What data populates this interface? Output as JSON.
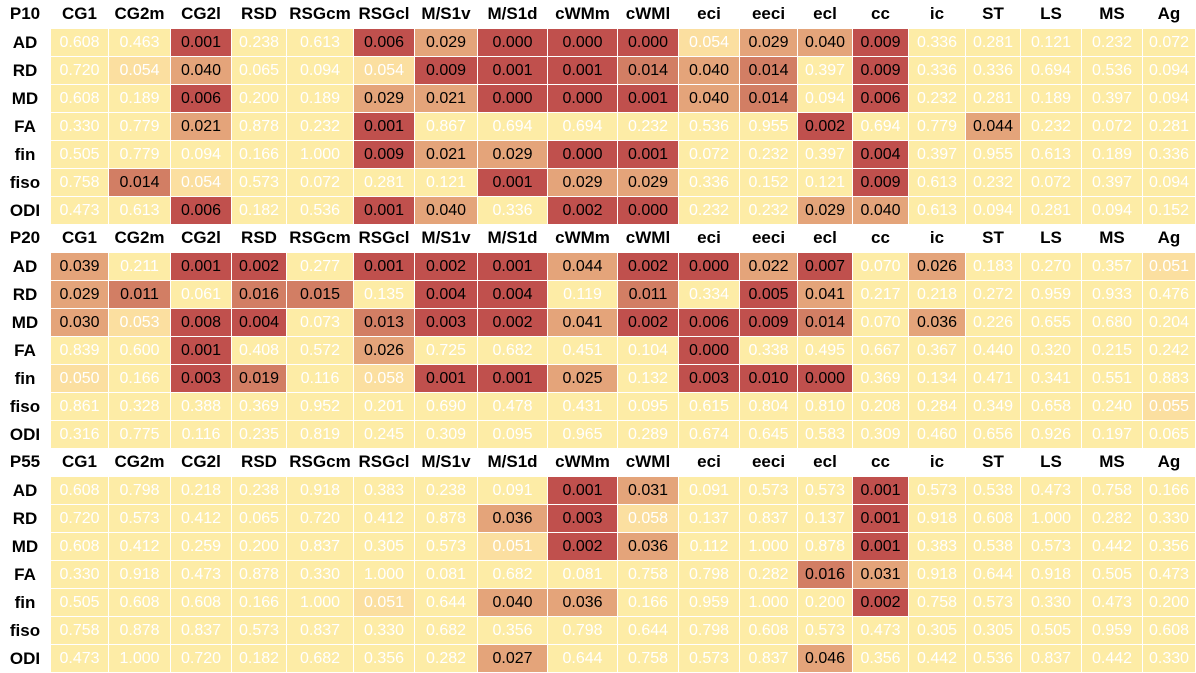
{
  "columns": [
    "CG1",
    "CG2m",
    "CG2l",
    "RSD",
    "RSGcm",
    "RSGcl",
    "M/S1v",
    "M/S1d",
    "cWMm",
    "cWMl",
    "eci",
    "eeci",
    "ecl",
    "cc",
    "ic",
    "ST",
    "LS",
    "MS",
    "Ag"
  ],
  "row_labels": [
    "AD",
    "RD",
    "MD",
    "FA",
    "fin",
    "fiso",
    "ODI"
  ],
  "palette": {
    "low": "#fdeca6",
    "mid": "#e4a47a",
    "high": "#c0504d"
  },
  "panels": [
    {
      "title": "P10",
      "rows": [
        [
          "0.608",
          "0.463",
          "0.001",
          "0.238",
          "0.613",
          "0.006",
          "0.029",
          "0.000",
          "0.000",
          "0.000",
          "0.054",
          "0.029",
          "0.040",
          "0.009",
          "0.336",
          "0.281",
          "0.121",
          "0.232",
          "0.072"
        ],
        [
          "0.720",
          "0.054",
          "0.040",
          "0.065",
          "0.094",
          "0.054",
          "0.009",
          "0.001",
          "0.001",
          "0.014",
          "0.040",
          "0.014",
          "0.397",
          "0.009",
          "0.336",
          "0.336",
          "0.694",
          "0.536",
          "0.094"
        ],
        [
          "0.608",
          "0.189",
          "0.006",
          "0.200",
          "0.189",
          "0.029",
          "0.021",
          "0.000",
          "0.000",
          "0.001",
          "0.040",
          "0.014",
          "0.094",
          "0.006",
          "0.232",
          "0.281",
          "0.189",
          "0.397",
          "0.094"
        ],
        [
          "0.330",
          "0.779",
          "0.021",
          "0.878",
          "0.232",
          "0.001",
          "0.867",
          "0.694",
          "0.694",
          "0.232",
          "0.536",
          "0.955",
          "0.002",
          "0.694",
          "0.779",
          "0.044",
          "0.232",
          "0.072",
          "0.281"
        ],
        [
          "0.505",
          "0.779",
          "0.094",
          "0.166",
          "1.000",
          "0.009",
          "0.021",
          "0.029",
          "0.000",
          "0.001",
          "0.072",
          "0.232",
          "0.397",
          "0.004",
          "0.397",
          "0.955",
          "0.613",
          "0.189",
          "0.336"
        ],
        [
          "0.758",
          "0.014",
          "0.054",
          "0.573",
          "0.072",
          "0.281",
          "0.121",
          "0.001",
          "0.029",
          "0.029",
          "0.336",
          "0.152",
          "0.121",
          "0.009",
          "0.613",
          "0.232",
          "0.072",
          "0.397",
          "0.094"
        ],
        [
          "0.473",
          "0.613",
          "0.006",
          "0.182",
          "0.536",
          "0.001",
          "0.040",
          "0.336",
          "0.002",
          "0.000",
          "0.232",
          "0.232",
          "0.029",
          "0.040",
          "0.613",
          "0.094",
          "0.281",
          "0.094",
          "0.152"
        ]
      ]
    },
    {
      "title": "P20",
      "rows": [
        [
          "0.039",
          "0.211",
          "0.001",
          "0.002",
          "0.277",
          "0.001",
          "0.002",
          "0.001",
          "0.044",
          "0.002",
          "0.000",
          "0.022",
          "0.007",
          "0.070",
          "0.026",
          "0.183",
          "0.270",
          "0.357",
          "0.051"
        ],
        [
          "0.029",
          "0.011",
          "0.061",
          "0.016",
          "0.015",
          "0.135",
          "0.004",
          "0.004",
          "0.119",
          "0.011",
          "0.334",
          "0.005",
          "0.041",
          "0.217",
          "0.218",
          "0.272",
          "0.959",
          "0.933",
          "0.476"
        ],
        [
          "0.030",
          "0.053",
          "0.008",
          "0.004",
          "0.073",
          "0.013",
          "0.003",
          "0.002",
          "0.041",
          "0.002",
          "0.006",
          "0.009",
          "0.014",
          "0.070",
          "0.036",
          "0.226",
          "0.655",
          "0.680",
          "0.204"
        ],
        [
          "0.839",
          "0.600",
          "0.001",
          "0.408",
          "0.572",
          "0.026",
          "0.725",
          "0.682",
          "0.451",
          "0.104",
          "0.000",
          "0.338",
          "0.495",
          "0.667",
          "0.367",
          "0.440",
          "0.320",
          "0.215",
          "0.242"
        ],
        [
          "0.050",
          "0.166",
          "0.003",
          "0.019",
          "0.116",
          "0.058",
          "0.001",
          "0.001",
          "0.025",
          "0.132",
          "0.003",
          "0.010",
          "0.000",
          "0.369",
          "0.134",
          "0.471",
          "0.341",
          "0.551",
          "0.883"
        ],
        [
          "0.861",
          "0.328",
          "0.388",
          "0.369",
          "0.952",
          "0.201",
          "0.690",
          "0.478",
          "0.431",
          "0.095",
          "0.615",
          "0.804",
          "0.810",
          "0.208",
          "0.284",
          "0.349",
          "0.658",
          "0.240",
          "0.055"
        ],
        [
          "0.316",
          "0.775",
          "0.116",
          "0.235",
          "0.819",
          "0.245",
          "0.309",
          "0.095",
          "0.965",
          "0.289",
          "0.674",
          "0.645",
          "0.583",
          "0.309",
          "0.460",
          "0.656",
          "0.926",
          "0.197",
          "0.065"
        ]
      ]
    },
    {
      "title": "P55",
      "rows": [
        [
          "0.608",
          "0.798",
          "0.218",
          "0.238",
          "0.918",
          "0.383",
          "0.238",
          "0.091",
          "0.001",
          "0.031",
          "0.091",
          "0.573",
          "0.573",
          "0.001",
          "0.573",
          "0.538",
          "0.473",
          "0.758",
          "0.166"
        ],
        [
          "0.720",
          "0.573",
          "0.412",
          "0.065",
          "0.720",
          "0.412",
          "0.878",
          "0.036",
          "0.003",
          "0.058",
          "0.137",
          "0.837",
          "0.137",
          "0.001",
          "0.918",
          "0.608",
          "1.000",
          "0.282",
          "0.330"
        ],
        [
          "0.608",
          "0.412",
          "0.259",
          "0.200",
          "0.837",
          "0.305",
          "0.573",
          "0.051",
          "0.002",
          "0.036",
          "0.112",
          "1.000",
          "0.878",
          "0.001",
          "0.383",
          "0.538",
          "0.573",
          "0.442",
          "0.356"
        ],
        [
          "0.330",
          "0.918",
          "0.473",
          "0.878",
          "0.330",
          "1.000",
          "0.081",
          "0.682",
          "0.081",
          "0.758",
          "0.798",
          "0.282",
          "0.016",
          "0.031",
          "0.918",
          "0.644",
          "0.918",
          "0.505",
          "0.473"
        ],
        [
          "0.505",
          "0.608",
          "0.608",
          "0.166",
          "1.000",
          "0.051",
          "0.644",
          "0.040",
          "0.036",
          "0.166",
          "0.959",
          "1.000",
          "0.200",
          "0.002",
          "0.758",
          "0.573",
          "0.330",
          "0.473",
          "0.200"
        ],
        [
          "0.758",
          "0.878",
          "0.837",
          "0.573",
          "0.837",
          "0.330",
          "0.682",
          "0.356",
          "0.798",
          "0.644",
          "0.798",
          "0.608",
          "0.573",
          "0.473",
          "0.305",
          "0.305",
          "0.505",
          "0.959",
          "0.608"
        ],
        [
          "0.473",
          "1.000",
          "0.720",
          "0.182",
          "0.682",
          "0.356",
          "0.282",
          "0.027",
          "0.644",
          "0.758",
          "0.573",
          "0.837",
          "0.046",
          "0.356",
          "0.442",
          "0.536",
          "0.837",
          "0.442",
          "0.330"
        ]
      ]
    }
  ]
}
